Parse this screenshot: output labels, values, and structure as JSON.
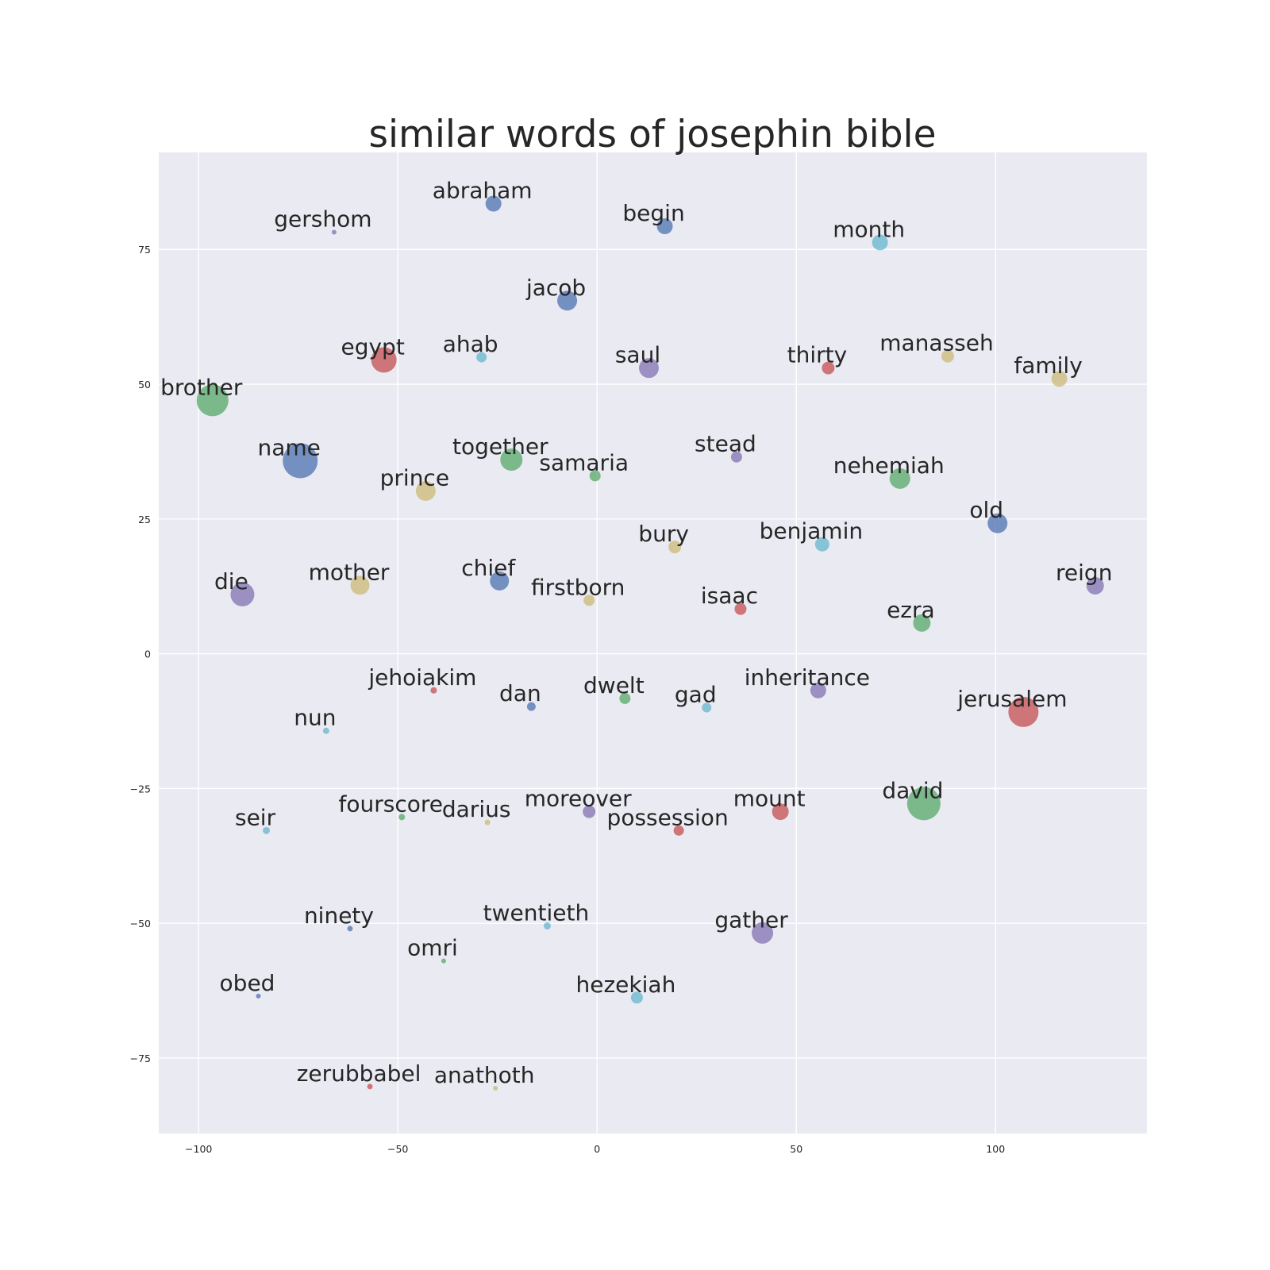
{
  "chart_data": {
    "type": "scatter",
    "title": "similar words of josephin bible",
    "xlabel": "",
    "ylabel": "",
    "xlim": [
      -110,
      138
    ],
    "ylim": [
      -89,
      93
    ],
    "xticks": [
      -100,
      -50,
      0,
      50,
      100
    ],
    "yticks": [
      -75,
      -50,
      -25,
      0,
      25,
      50,
      75
    ],
    "xtick_labels": [
      "−100",
      "−50",
      "0",
      "50",
      "100"
    ],
    "ytick_labels": [
      "−75",
      "−50",
      "−25",
      "0",
      "25",
      "50",
      "75"
    ],
    "grid": true,
    "colors": {
      "blue": "#4c72b0",
      "green": "#55a868",
      "red": "#c44e52",
      "purple": "#8172b2",
      "yellow": "#ccb974",
      "cyan": "#64b5cd"
    },
    "points": [
      {
        "label": "abraham",
        "x": -26,
        "y": 83.5,
        "size": 10,
        "color": "blue"
      },
      {
        "label": "gershom",
        "x": -66,
        "y": 78.2,
        "size": 3,
        "color": "purple"
      },
      {
        "label": "begin",
        "x": 17,
        "y": 79.3,
        "size": 10,
        "color": "blue"
      },
      {
        "label": "month",
        "x": 71,
        "y": 76.3,
        "size": 10,
        "color": "cyan"
      },
      {
        "label": "jacob",
        "x": -7.5,
        "y": 65.5,
        "size": 12.5,
        "color": "blue"
      },
      {
        "label": "egypt",
        "x": -53.5,
        "y": 54.5,
        "size": 16,
        "color": "red"
      },
      {
        "label": "ahab",
        "x": -29,
        "y": 55,
        "size": 6.5,
        "color": "cyan"
      },
      {
        "label": "saul",
        "x": 13,
        "y": 53,
        "size": 12.5,
        "color": "purple"
      },
      {
        "label": "thirty",
        "x": 58,
        "y": 53,
        "size": 8,
        "color": "red"
      },
      {
        "label": "manasseh",
        "x": 88,
        "y": 55.2,
        "size": 8,
        "color": "yellow"
      },
      {
        "label": "family",
        "x": 116,
        "y": 51,
        "size": 10,
        "color": "yellow"
      },
      {
        "label": "brother",
        "x": -96.5,
        "y": 47,
        "size": 20,
        "color": "green"
      },
      {
        "label": "name",
        "x": -74.5,
        "y": 35.8,
        "size": 22,
        "color": "blue"
      },
      {
        "label": "together",
        "x": -21.5,
        "y": 36,
        "size": 14,
        "color": "green"
      },
      {
        "label": "samaria",
        "x": -0.5,
        "y": 33,
        "size": 7,
        "color": "green"
      },
      {
        "label": "stead",
        "x": 35,
        "y": 36.5,
        "size": 7,
        "color": "purple"
      },
      {
        "label": "nehemiah",
        "x": 76,
        "y": 32.5,
        "size": 13,
        "color": "green"
      },
      {
        "label": "prince",
        "x": -43,
        "y": 30.2,
        "size": 12.5,
        "color": "yellow"
      },
      {
        "label": "old",
        "x": 100.5,
        "y": 24.2,
        "size": 12.5,
        "color": "blue"
      },
      {
        "label": "bury",
        "x": 19.5,
        "y": 19.8,
        "size": 8,
        "color": "yellow"
      },
      {
        "label": "benjamin",
        "x": 56.5,
        "y": 20.3,
        "size": 9,
        "color": "cyan"
      },
      {
        "label": "chief",
        "x": -24.5,
        "y": 13.5,
        "size": 12,
        "color": "blue"
      },
      {
        "label": "firstborn",
        "x": -2,
        "y": 9.9,
        "size": 7,
        "color": "yellow"
      },
      {
        "label": "die",
        "x": -89,
        "y": 11,
        "size": 15,
        "color": "purple"
      },
      {
        "label": "mother",
        "x": -59.5,
        "y": 12.7,
        "size": 12,
        "color": "yellow"
      },
      {
        "label": "reign",
        "x": 125,
        "y": 12.6,
        "size": 11,
        "color": "purple"
      },
      {
        "label": "isaac",
        "x": 36,
        "y": 8.3,
        "size": 7.5,
        "color": "red"
      },
      {
        "label": "ezra",
        "x": 81.5,
        "y": 5.7,
        "size": 11,
        "color": "green"
      },
      {
        "label": "jehoiakim",
        "x": -41,
        "y": -6.8,
        "size": 4,
        "color": "red"
      },
      {
        "label": "inheritance",
        "x": 55.5,
        "y": -6.8,
        "size": 10,
        "color": "purple"
      },
      {
        "label": "dan",
        "x": -16.5,
        "y": -9.8,
        "size": 5.5,
        "color": "blue"
      },
      {
        "label": "dwelt",
        "x": 7,
        "y": -8.3,
        "size": 7,
        "color": "green"
      },
      {
        "label": "gad",
        "x": 27.5,
        "y": -10,
        "size": 6,
        "color": "cyan"
      },
      {
        "label": "jerusalem",
        "x": 107,
        "y": -10.8,
        "size": 19,
        "color": "red"
      },
      {
        "label": "nun",
        "x": -68,
        "y": -14.3,
        "size": 4,
        "color": "cyan"
      },
      {
        "label": "david",
        "x": 82,
        "y": -27.8,
        "size": 21,
        "color": "green"
      },
      {
        "label": "mount",
        "x": 46,
        "y": -29.3,
        "size": 10.5,
        "color": "red"
      },
      {
        "label": "moreover",
        "x": -2,
        "y": -29.3,
        "size": 8,
        "color": "purple"
      },
      {
        "label": "fourscore",
        "x": -49,
        "y": -30.3,
        "size": 4,
        "color": "green"
      },
      {
        "label": "darius",
        "x": -27.5,
        "y": -31.3,
        "size": 3.5,
        "color": "yellow"
      },
      {
        "label": "possession",
        "x": 20.5,
        "y": -32.8,
        "size": 6.5,
        "color": "red"
      },
      {
        "label": "seir",
        "x": -83,
        "y": -32.8,
        "size": 4.5,
        "color": "cyan"
      },
      {
        "label": "ninety",
        "x": -62,
        "y": -51,
        "size": 3.5,
        "color": "blue"
      },
      {
        "label": "twentieth",
        "x": -12.5,
        "y": -50.5,
        "size": 4.5,
        "color": "cyan"
      },
      {
        "label": "gather",
        "x": 41.5,
        "y": -51.8,
        "size": 13.5,
        "color": "purple"
      },
      {
        "label": "omri",
        "x": -38.5,
        "y": -57,
        "size": 3,
        "color": "green"
      },
      {
        "label": "obed",
        "x": -85,
        "y": -63.5,
        "size": 3,
        "color": "blue"
      },
      {
        "label": "hezekiah",
        "x": 10,
        "y": -63.8,
        "size": 7.5,
        "color": "cyan"
      },
      {
        "label": "zerubbabel",
        "x": -57,
        "y": -80.3,
        "size": 3.5,
        "color": "red"
      },
      {
        "label": "anathoth",
        "x": -25.5,
        "y": -80.6,
        "size": 3,
        "color": "yellow"
      }
    ]
  }
}
